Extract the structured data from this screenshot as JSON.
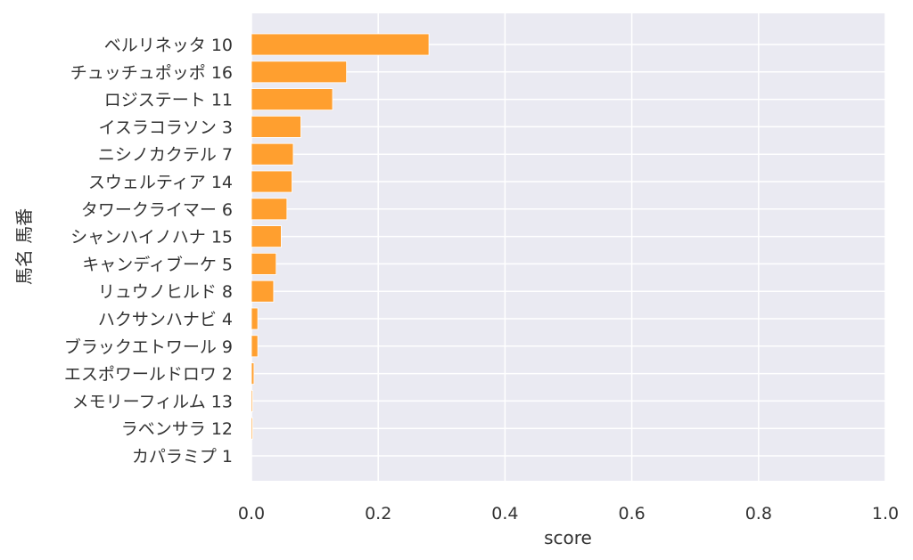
{
  "chart_data": {
    "type": "bar",
    "orientation": "horizontal",
    "xlabel": "score",
    "ylabel": "馬名 馬番",
    "xlim": [
      0,
      1.0
    ],
    "xticks": [
      "0.0",
      "0.2",
      "0.4",
      "0.6",
      "0.8",
      "1.0"
    ],
    "grid": true,
    "bar_color": "#ff9f2f",
    "plot_background": "#eaeaf2",
    "categories": [
      "ベルリネッタ 10",
      "チュッチュポッポ 16",
      "ロジステート 11",
      "イスラコラソン 3",
      "ニシノカクテル 7",
      "スウェルティア 14",
      "タワークライマー 6",
      "シャンハイノハナ 15",
      "キャンディブーケ 5",
      "リュウノヒルド 8",
      "ハクサンハナビ 4",
      "ブラックエトワール 9",
      "エスポワールドロワ 2",
      "メモリーフィルム 13",
      "ラベンサラ 12",
      "カパラミプ 1"
    ],
    "values": [
      0.28,
      0.15,
      0.128,
      0.078,
      0.066,
      0.064,
      0.056,
      0.047,
      0.039,
      0.035,
      0.01,
      0.01,
      0.004,
      0.002,
      0.002,
      0.0
    ]
  }
}
